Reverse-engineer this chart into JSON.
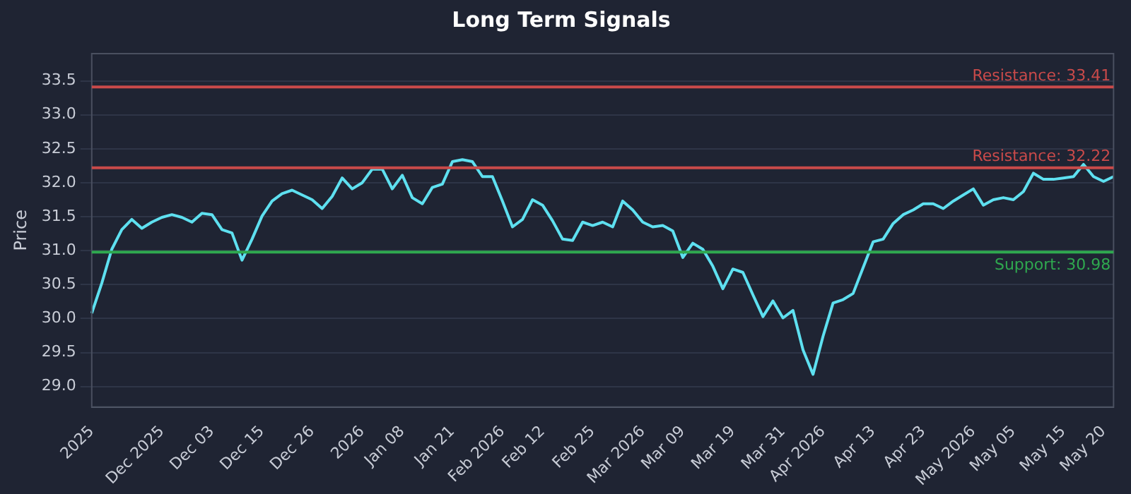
{
  "chart_data": {
    "type": "line",
    "title": "Long Term Signals",
    "ylabel": "Price",
    "categories": [
      "2025",
      null,
      null,
      null,
      null,
      null,
      null,
      "Dec 2025",
      null,
      null,
      null,
      null,
      "Dec 03",
      null,
      null,
      null,
      null,
      "Dec 15",
      null,
      null,
      null,
      null,
      "Dec 26",
      null,
      null,
      null,
      null,
      "2026",
      null,
      null,
      null,
      "Jan 08",
      null,
      null,
      null,
      null,
      "Jan 21",
      null,
      null,
      null,
      null,
      "Feb 2026",
      null,
      null,
      null,
      "Feb 12",
      null,
      null,
      null,
      null,
      "Feb 25",
      null,
      null,
      null,
      null,
      "Mar 2026",
      null,
      null,
      null,
      "Mar 09",
      null,
      null,
      null,
      null,
      "Mar 19",
      null,
      null,
      null,
      null,
      "Mar 31",
      null,
      null,
      null,
      "Apr 2026",
      null,
      null,
      null,
      null,
      "Apr 13",
      null,
      null,
      null,
      null,
      "Apr 23",
      null,
      null,
      null,
      null,
      "May 2026",
      null,
      null,
      null,
      "May 05",
      null,
      null,
      null,
      null,
      "May 15",
      null,
      null,
      null,
      "May 20",
      null
    ],
    "series": [
      {
        "color": "#5ee0f0",
        "values": [
          30.08,
          30.52,
          31.02,
          31.31,
          31.46,
          31.33,
          31.42,
          31.49,
          31.53,
          31.49,
          31.42,
          31.55,
          31.53,
          31.31,
          31.26,
          30.86,
          31.17,
          31.51,
          31.73,
          31.84,
          31.89,
          31.82,
          31.75,
          31.62,
          31.8,
          32.07,
          31.91,
          32.0,
          32.2,
          32.2,
          31.91,
          32.11,
          31.78,
          31.69,
          31.93,
          31.98,
          32.31,
          32.34,
          32.31,
          32.09,
          32.09,
          31.73,
          31.35,
          31.46,
          31.75,
          31.67,
          31.44,
          31.17,
          31.15,
          31.42,
          31.37,
          31.42,
          31.35,
          31.73,
          31.6,
          31.42,
          31.35,
          31.37,
          31.29,
          30.9,
          31.11,
          31.02,
          30.77,
          30.44,
          30.73,
          30.68,
          30.35,
          30.03,
          30.26,
          30.01,
          30.12,
          29.54,
          29.18,
          29.74,
          30.23,
          30.28,
          30.37,
          30.75,
          31.13,
          31.17,
          31.4,
          31.53,
          31.6,
          31.69,
          31.69,
          31.62,
          31.73,
          31.82,
          31.91,
          31.67,
          31.75,
          31.78,
          31.75,
          31.87,
          32.14,
          32.05,
          32.05,
          32.07,
          32.09,
          32.27,
          32.09,
          32.02,
          32.09
        ]
      }
    ],
    "ylim": [
      28.7,
      33.9
    ],
    "yticks": [
      {
        "value": 29,
        "label": "29.0"
      },
      29.5,
      {
        "value": 30,
        "label": "30.0"
      },
      30.5,
      {
        "value": 31,
        "label": "31.0"
      },
      31.5,
      {
        "value": 32,
        "label": "32.0"
      },
      32.5,
      {
        "value": 33,
        "label": "33.0"
      },
      33.5
    ],
    "ref_lines": [
      {
        "axis": "y",
        "value": 33.41,
        "label": "Resistance: 33.41",
        "color": "#c94a4a"
      },
      {
        "axis": "y",
        "value": 32.22,
        "label": "Resistance: 32.22",
        "color": "#c94a4a"
      },
      {
        "axis": "y",
        "value": 30.98,
        "label": "Support: 30.98",
        "color": "#2fa84f"
      }
    ],
    "grid": "y",
    "legend": false,
    "marker": "none",
    "line_style": "solid"
  }
}
